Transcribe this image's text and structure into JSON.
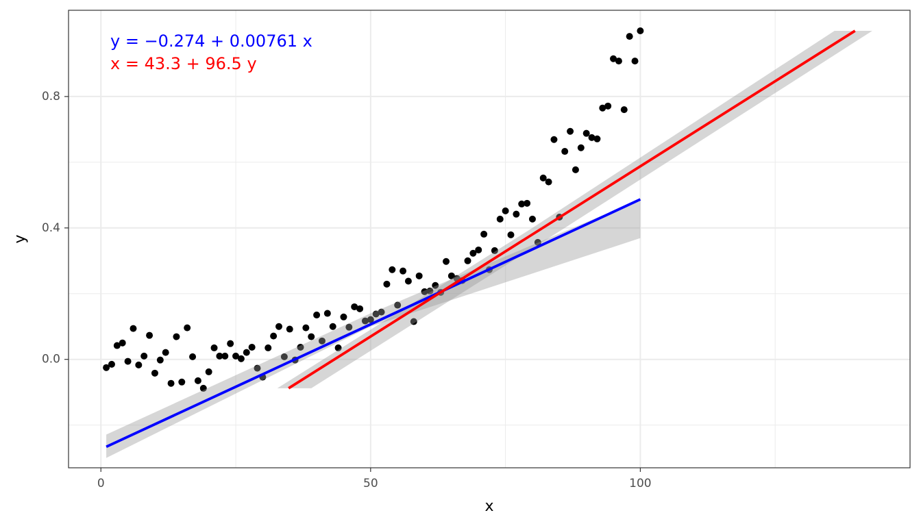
{
  "chart_data": {
    "type": "scatter",
    "x_label": "x",
    "y_label": "y",
    "xlim": [
      -6,
      150
    ],
    "ylim": [
      -0.33,
      1.0625
    ],
    "xticks": [
      0,
      50,
      100
    ],
    "yticks": [
      {
        "value": 0,
        "label": "0.0"
      },
      {
        "value": 0.4,
        "label": "0.4"
      },
      {
        "value": 0.8,
        "label": "0.8"
      }
    ],
    "x_minor_grid": [
      25,
      75,
      125
    ],
    "y_minor_grid": [
      -0.2,
      0.2,
      0.6
    ],
    "grid": true,
    "points": {
      "color": "#000000",
      "x": [
        1,
        2,
        3,
        4,
        5,
        6,
        7,
        8,
        9,
        10,
        11,
        12,
        13,
        14,
        15,
        16,
        17,
        18,
        19,
        20,
        21,
        22,
        23,
        24,
        25,
        26,
        27,
        28,
        29,
        30,
        31,
        32,
        33,
        34,
        35,
        36,
        37,
        38,
        39,
        40,
        41,
        42,
        43,
        44,
        45,
        46,
        47,
        48,
        49,
        50,
        51,
        52,
        53,
        54,
        55,
        56,
        57,
        58,
        59,
        60,
        61,
        62,
        63,
        64,
        65,
        66,
        67,
        68,
        69,
        70,
        71,
        72,
        73,
        74,
        75,
        76,
        77,
        78,
        79,
        80,
        81,
        82,
        83,
        84,
        85,
        86,
        87,
        88,
        89,
        90,
        91,
        92,
        93,
        94,
        95,
        96,
        97,
        98,
        99,
        100
      ],
      "values": [
        -0.025,
        -0.015,
        0.042,
        0.05,
        -0.006,
        0.094,
        -0.017,
        0.01,
        0.073,
        -0.042,
        -0.002,
        0.021,
        -0.073,
        0.069,
        -0.069,
        0.096,
        0.008,
        -0.065,
        -0.088,
        -0.038,
        0.035,
        0.01,
        0.01,
        0.048,
        0.01,
        0.002,
        0.021,
        0.037,
        -0.027,
        -0.054,
        0.035,
        0.071,
        0.1,
        0.008,
        0.092,
        -0.002,
        0.037,
        0.096,
        0.069,
        0.135,
        0.056,
        0.14,
        0.1,
        0.035,
        0.129,
        0.098,
        0.16,
        0.154,
        0.117,
        0.121,
        0.138,
        0.144,
        0.229,
        0.273,
        0.165,
        0.269,
        0.238,
        0.115,
        0.254,
        0.206,
        0.208,
        0.225,
        0.204,
        0.298,
        0.254,
        0.246,
        0.24,
        0.3,
        0.323,
        0.333,
        0.381,
        0.273,
        0.331,
        0.427,
        0.452,
        0.379,
        0.442,
        0.473,
        0.475,
        0.427,
        0.356,
        0.552,
        0.54,
        0.669,
        0.433,
        0.633,
        0.694,
        0.577,
        0.644,
        0.688,
        0.675,
        0.671,
        0.765,
        0.771,
        0.915,
        0.908,
        0.76,
        0.983,
        0.908,
        1.0
      ]
    },
    "fits": [
      {
        "color": "#0000ff",
        "x": [
          1,
          100
        ],
        "values": [
          -0.266,
          0.487
        ],
        "band": {
          "along": "x",
          "at": [
            1,
            50,
            100
          ],
          "lower": [
            -0.3,
            0.1,
            0.369
          ],
          "upper": [
            -0.229,
            0.14,
            0.487
          ]
        }
      },
      {
        "color": "#ff0000",
        "x": [
          34.8,
          139.8
        ],
        "values": [
          -0.088,
          1.0
        ],
        "band": {
          "along": "y",
          "at": [
            -0.088,
            0.4,
            1.0
          ],
          "lower": [
            32.7,
            80,
            136
          ],
          "upper": [
            39,
            86,
            143
          ]
        }
      }
    ],
    "annotations": [
      {
        "text": "y = −0.274 + 0.00761 x",
        "color": "#0000ff"
      },
      {
        "text": "x = 43.3 + 96.5 y",
        "color": "#ff0000"
      }
    ]
  }
}
